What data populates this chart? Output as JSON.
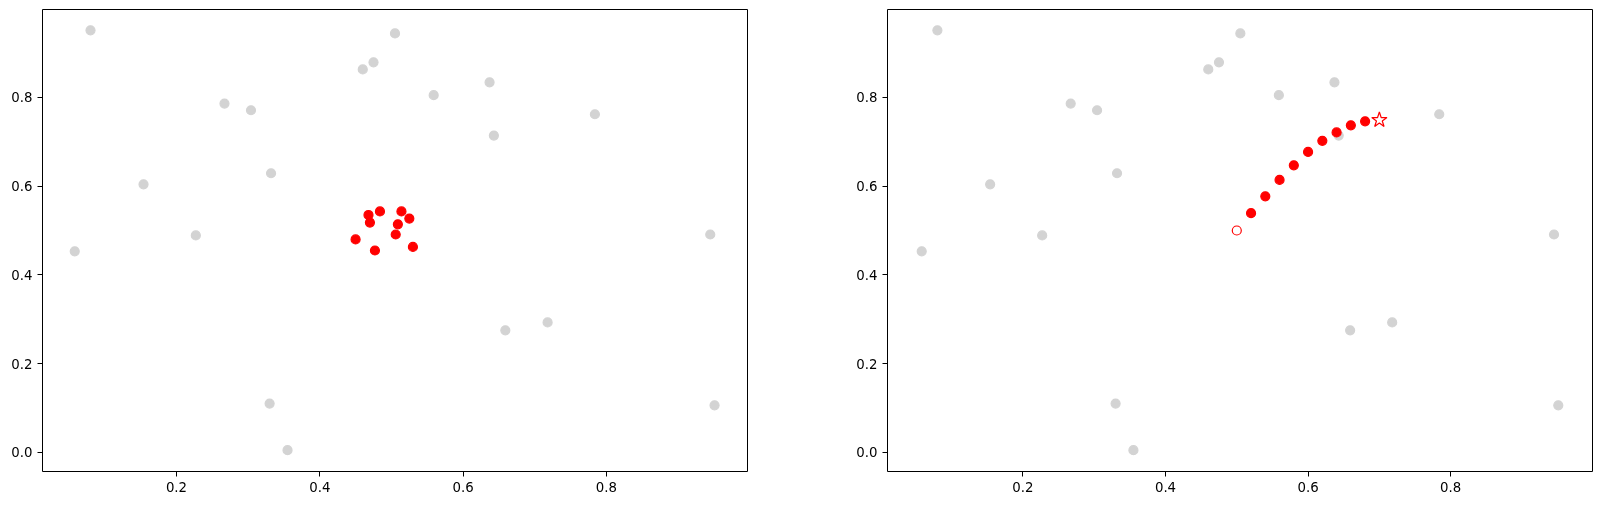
{
  "chart_data": [
    {
      "type": "scatter",
      "xlim": [
        0.013,
        0.997
      ],
      "ylim": [
        -0.043,
        0.998
      ],
      "xticks": [
        0.2,
        0.4,
        0.6,
        0.8
      ],
      "yticks": [
        {
          "value": 0,
          "label": "0.0"
        },
        0.2,
        0.4,
        0.6,
        0.8
      ],
      "series": [
        {
          "color": "#d3d3d3",
          "marker": "circle",
          "x": [
            0.08,
            0.505,
            0.475,
            0.46,
            0.267,
            0.304,
            0.154,
            0.332,
            0.227,
            0.058,
            0.33,
            0.355,
            0.559,
            0.637,
            0.784,
            0.643,
            0.945,
            0.659,
            0.718,
            0.951
          ],
          "values": [
            0.951,
            0.944,
            0.879,
            0.863,
            0.786,
            0.771,
            0.604,
            0.629,
            0.489,
            0.453,
            0.11,
            0.005,
            0.805,
            0.834,
            0.762,
            0.714,
            0.491,
            0.275,
            0.293,
            0.106
          ]
        },
        {
          "color": "#ff0000",
          "marker": "circle",
          "x": [
            0.45,
            0.468,
            0.47,
            0.484,
            0.477,
            0.506,
            0.509,
            0.514,
            0.525,
            0.53
          ],
          "values": [
            0.48,
            0.535,
            0.518,
            0.543,
            0.455,
            0.491,
            0.514,
            0.543,
            0.527,
            0.463
          ]
        }
      ]
    },
    {
      "type": "scatter",
      "xlim": [
        0.01,
        0.999
      ],
      "ylim": [
        -0.043,
        0.998
      ],
      "xticks": [
        0.2,
        0.4,
        0.6,
        0.8
      ],
      "yticks": [
        {
          "value": 0,
          "label": "0.0"
        },
        0.2,
        0.4,
        0.6,
        0.8
      ],
      "series": [
        {
          "color": "#d3d3d3",
          "marker": "circle",
          "x": [
            0.08,
            0.505,
            0.475,
            0.46,
            0.267,
            0.304,
            0.154,
            0.332,
            0.227,
            0.058,
            0.33,
            0.355,
            0.559,
            0.637,
            0.784,
            0.643,
            0.945,
            0.659,
            0.718,
            0.951
          ],
          "values": [
            0.951,
            0.944,
            0.879,
            0.863,
            0.786,
            0.771,
            0.604,
            0.629,
            0.489,
            0.453,
            0.11,
            0.005,
            0.805,
            0.834,
            0.762,
            0.714,
            0.491,
            0.275,
            0.293,
            0.106
          ]
        },
        {
          "color": "#ff0000",
          "marker": "circle",
          "x": [
            0.52,
            0.54,
            0.56,
            0.58,
            0.6,
            0.62,
            0.64,
            0.66,
            0.68
          ],
          "values": [
            0.539,
            0.577,
            0.614,
            0.647,
            0.677,
            0.702,
            0.721,
            0.737,
            0.746
          ]
        },
        {
          "color": "#ff0000",
          "marker": "circle",
          "x": [
            0.5
          ],
          "values": [
            0.5
          ]
        },
        {
          "color": "#ff0000",
          "marker": "star",
          "x": [
            0.7
          ],
          "values": [
            0.749
          ]
        }
      ]
    }
  ]
}
